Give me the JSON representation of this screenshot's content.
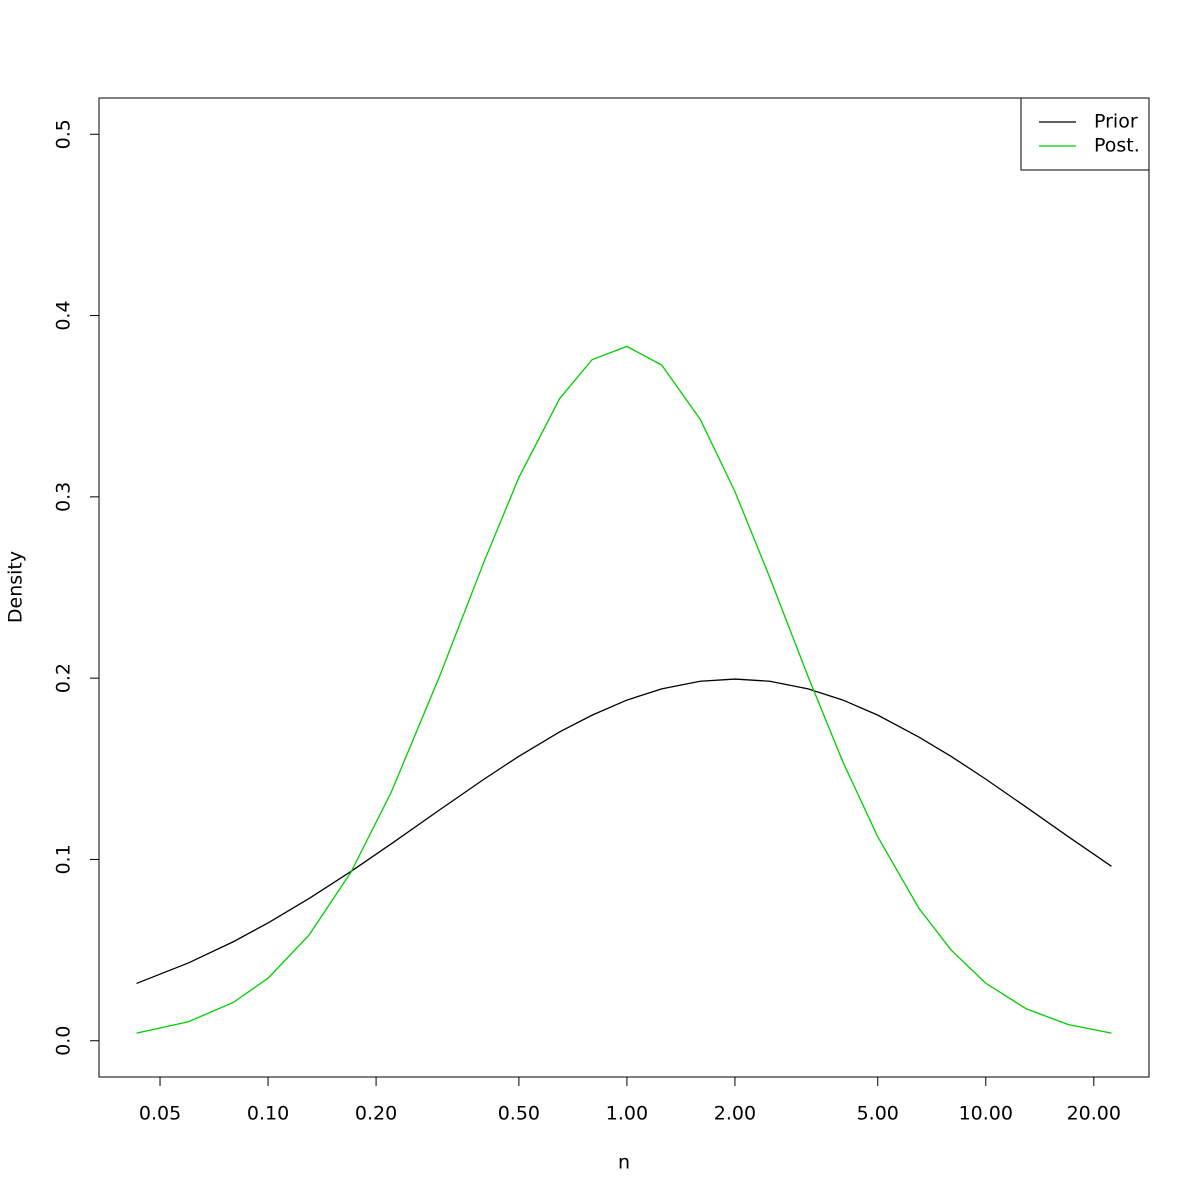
{
  "chart_data": {
    "type": "line",
    "x_label": "n",
    "y_label": "Density",
    "log_x": true,
    "grid": false,
    "legend": "topright",
    "x": [
      0.043,
      0.06,
      0.08,
      0.1,
      0.13,
      0.17,
      0.22,
      0.3,
      0.4,
      0.5,
      0.65,
      0.8,
      1.0,
      1.25,
      1.6,
      2.0,
      2.5,
      3.2,
      4,
      5,
      6.5,
      8,
      10,
      13,
      17,
      22.4
    ],
    "series": [
      {
        "name": "Prior",
        "color": "#000000",
        "values": [
          0.0316,
          0.0429,
          0.0546,
          0.065,
          0.0784,
          0.0933,
          0.1085,
          0.1272,
          0.1443,
          0.1569,
          0.1704,
          0.1796,
          0.1879,
          0.1941,
          0.1983,
          0.1995,
          0.1983,
          0.1941,
          0.1879,
          0.1796,
          0.1676,
          0.1569,
          0.1443,
          0.1287,
          0.1125,
          0.0962
        ]
      },
      {
        "name": "Post.",
        "color": "#00cd00",
        "values": [
          0.0042,
          0.0105,
          0.0211,
          0.0345,
          0.0582,
          0.0928,
          0.1367,
          0.2006,
          0.2643,
          0.3107,
          0.3543,
          0.3757,
          0.383,
          0.3727,
          0.3428,
          0.3029,
          0.2556,
          0.2007,
          0.1537,
          0.1125,
          0.0733,
          0.0501,
          0.0317,
          0.0175,
          0.0089,
          0.0042
        ]
      }
    ],
    "xlim": [
      0.0338,
      28.5
    ],
    "xticks": [
      0.05,
      {
        "value": 0.1,
        "label": "0.10"
      },
      {
        "value": 0.2,
        "label": "0.20"
      },
      {
        "value": 0.5,
        "label": "0.50"
      },
      {
        "value": 1,
        "label": "1.00"
      },
      {
        "value": 2,
        "label": "2.00"
      },
      {
        "value": 5,
        "label": "5.00"
      },
      {
        "value": 10,
        "label": "10.00"
      },
      {
        "value": 20,
        "label": "20.00"
      }
    ],
    "ylim": [
      -0.02,
      0.52
    ],
    "yticks": [
      {
        "value": 0,
        "label": "0.0"
      },
      0.1,
      0.2,
      0.3,
      0.4,
      0.5
    ]
  }
}
